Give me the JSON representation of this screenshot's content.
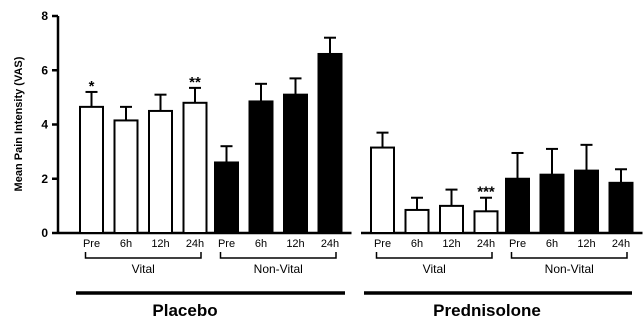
{
  "chart_data": {
    "type": "bar",
    "ylabel": "Mean Pain Intensity (VAS)",
    "ylim": [
      0,
      8
    ],
    "yticks": [
      0,
      2,
      4,
      6,
      8
    ],
    "grid": false,
    "bar_colors": {
      "Vital": "#ffffff",
      "Non-Vital": "#000000"
    },
    "arms": [
      {
        "name": "Placebo",
        "groups": [
          {
            "name": "Vital",
            "categories": [
              "Pre",
              "6h",
              "12h",
              "24h"
            ],
            "values": [
              4.65,
              4.15,
              4.5,
              4.8
            ],
            "errors": [
              0.55,
              0.5,
              0.6,
              0.55
            ],
            "annotations": [
              "*",
              "",
              "",
              "**"
            ]
          },
          {
            "name": "Non-Vital",
            "categories": [
              "Pre",
              "6h",
              "12h",
              "24h"
            ],
            "values": [
              2.6,
              4.85,
              5.1,
              6.6
            ],
            "errors": [
              0.6,
              0.65,
              0.6,
              0.6
            ],
            "annotations": [
              "",
              "",
              "",
              ""
            ]
          }
        ]
      },
      {
        "name": "Prednisolone",
        "groups": [
          {
            "name": "Vital",
            "categories": [
              "Pre",
              "6h",
              "12h",
              "24h"
            ],
            "values": [
              3.15,
              0.85,
              1.0,
              0.8
            ],
            "errors": [
              0.55,
              0.45,
              0.6,
              0.5
            ],
            "annotations": [
              "",
              "",
              "",
              "***"
            ]
          },
          {
            "name": "Non-Vital",
            "categories": [
              "Pre",
              "6h",
              "12h",
              "24h"
            ],
            "values": [
              2.0,
              2.15,
              2.3,
              1.85
            ],
            "errors": [
              0.95,
              0.95,
              0.95,
              0.5
            ],
            "annotations": [
              "",
              "",
              "",
              ""
            ]
          }
        ]
      }
    ]
  }
}
